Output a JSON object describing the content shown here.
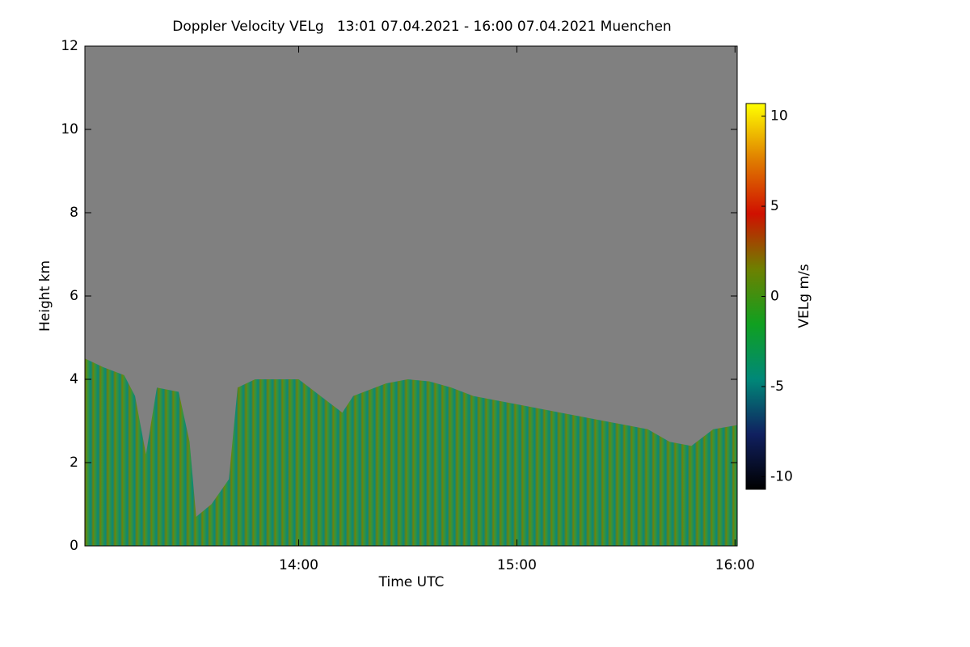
{
  "chart_data": {
    "type": "area",
    "title": "Doppler Velocity VELg   13:01 07.04.2021 - 16:00 07.04.2021 Muenchen",
    "xlabel": "Time UTC",
    "ylabel": "Height km",
    "x": [
      13.02,
      13.1,
      13.2,
      13.25,
      13.3,
      13.35,
      13.45,
      13.5,
      13.53,
      13.6,
      13.68,
      13.72,
      13.8,
      14.0,
      14.1,
      14.2,
      14.25,
      14.3,
      14.4,
      14.5,
      14.6,
      14.7,
      14.8,
      15.0,
      15.2,
      15.4,
      15.6,
      15.7,
      15.8,
      15.9,
      16.01
    ],
    "values": [
      4.5,
      4.3,
      4.1,
      3.6,
      2.2,
      3.8,
      3.7,
      2.5,
      0.7,
      1.0,
      1.6,
      3.8,
      4.0,
      4.0,
      3.6,
      3.2,
      3.6,
      3.7,
      3.9,
      4.0,
      3.95,
      3.8,
      3.6,
      3.4,
      3.2,
      3.0,
      2.8,
      2.5,
      2.4,
      2.8,
      2.9
    ],
    "color": "#3c9628",
    "background": "#808080",
    "xlim": [
      13.02,
      16.01
    ],
    "ylim": [
      0,
      12
    ],
    "xticks": [
      {
        "value": 14,
        "label": "14:00"
      },
      {
        "value": 15,
        "label": "15:00"
      },
      {
        "value": 16,
        "label": "16:00"
      }
    ],
    "yticks": [
      0,
      2,
      4,
      6,
      8,
      10,
      12
    ],
    "colorbar": {
      "label": "VELg m/s",
      "lim": [
        -10.7,
        10.7
      ],
      "ticks": [
        -10,
        -5,
        0,
        5,
        10
      ],
      "colors": [
        "#000000",
        "#102060",
        "#008878",
        "#10a020",
        "#6e8000",
        "#d01000",
        "#e08000",
        "#ffff00"
      ]
    }
  }
}
